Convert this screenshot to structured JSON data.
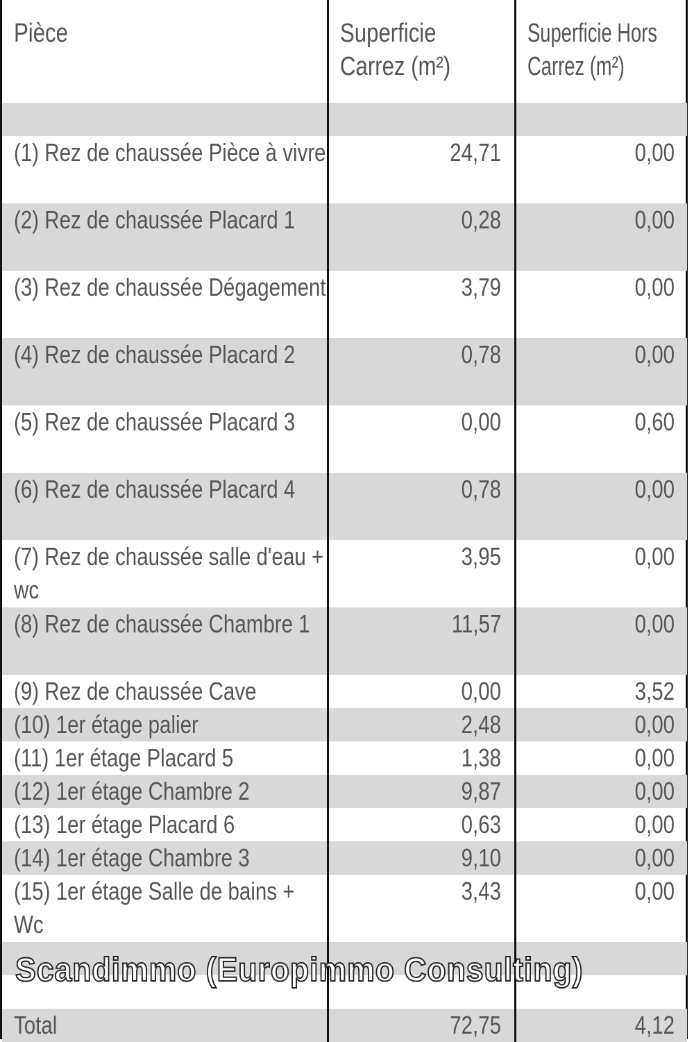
{
  "headers": {
    "piece": "Pièce",
    "carrez": "Superficie Carrez (m²)",
    "hors_carrez": "Superficie  Hors Carrez (m²)"
  },
  "rows": [
    {
      "piece": "(1) Rez de chaussée Pièce à vivre",
      "carrez": "24,71",
      "hors": "0,00"
    },
    {
      "piece": "(2) Rez de chaussée Placard 1",
      "carrez": "0,28",
      "hors": "0,00"
    },
    {
      "piece": "(3) Rez de chaussée Dégagement",
      "carrez": "3,79",
      "hors": "0,00"
    },
    {
      "piece": "(4) Rez de chaussée Placard 2",
      "carrez": "0,78",
      "hors": "0,00"
    },
    {
      "piece": "(5) Rez de chaussée Placard 3",
      "carrez": "0,00",
      "hors": "0,60"
    },
    {
      "piece": "(6) Rez de chaussée Placard 4",
      "carrez": "0,78",
      "hors": "0,00"
    },
    {
      "piece": "(7) Rez de chaussée salle d'eau + wc",
      "carrez": "3,95",
      "hors": "0,00"
    },
    {
      "piece": "(8) Rez de chaussée Chambre 1",
      "carrez": "11,57",
      "hors": "0,00"
    },
    {
      "piece": "(9) Rez de chaussée Cave",
      "carrez": "0,00",
      "hors": "3,52"
    },
    {
      "piece": "(10) 1er étage palier",
      "carrez": "2,48",
      "hors": "0,00"
    },
    {
      "piece": "(11) 1er étage Placard 5",
      "carrez": "1,38",
      "hors": "0,00"
    },
    {
      "piece": "(12) 1er étage Chambre 2",
      "carrez": "9,87",
      "hors": "0,00"
    },
    {
      "piece": "(13) 1er étage Placard 6",
      "carrez": "0,63",
      "hors": "0,00"
    },
    {
      "piece": "(14) 1er étage Chambre 3",
      "carrez": "9,10",
      "hors": "0,00"
    },
    {
      "piece": "(15) 1er étage Salle de bains + Wc",
      "carrez": "3,43",
      "hors": "0,00"
    }
  ],
  "total": {
    "label": "Total",
    "carrez": "72,75",
    "hors": "4,12"
  },
  "watermark": "Scandimmo (Europimmo Consulting)"
}
